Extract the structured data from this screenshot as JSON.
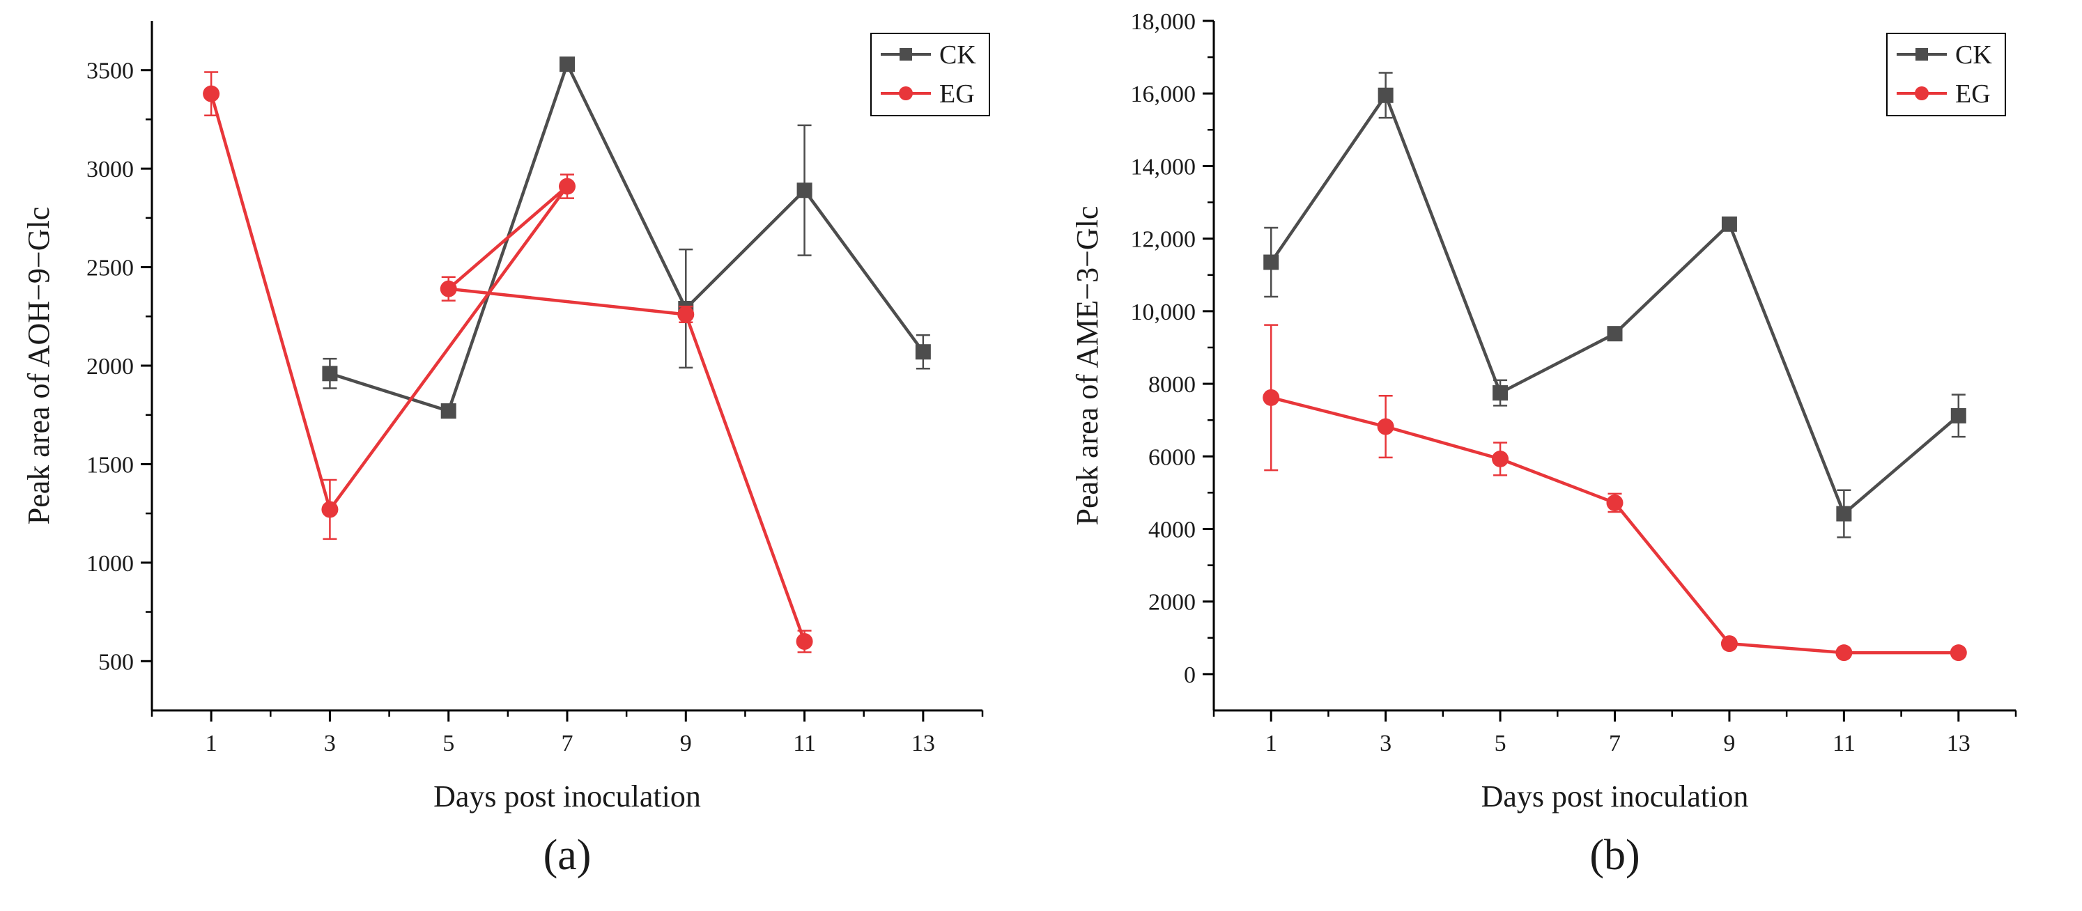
{
  "chart_data": [
    {
      "type": "line",
      "panel_label": "(a)",
      "xlabel": "Days post inoculation",
      "ylabel": "Peak area of AOH−9−Glc",
      "x_ticks": [
        1,
        3,
        5,
        7,
        9,
        11,
        13
      ],
      "x_tick_labels": [
        "1",
        "3",
        "5",
        "7",
        "9",
        "11",
        "13"
      ],
      "xlim": [
        0,
        14
      ],
      "y_ticks": [
        500,
        1000,
        1500,
        2000,
        2500,
        3000,
        3500
      ],
      "y_tick_labels": [
        "500",
        "1000",
        "1500",
        "2000",
        "2500",
        "3000",
        "3500"
      ],
      "ylim": [
        250,
        3750
      ],
      "legend_position": "top-right",
      "series": [
        {
          "name": "CK",
          "color": "#4d4d4d",
          "marker": "square",
          "x": [
            3,
            5,
            7,
            9,
            11,
            13
          ],
          "y": [
            1960,
            1770,
            3530,
            2290,
            2890,
            2070
          ],
          "err": [
            75,
            30,
            20,
            300,
            330,
            85
          ]
        },
        {
          "name": "EG",
          "color": "#e8363a",
          "marker": "circle",
          "x": [
            1,
            3,
            7,
            5,
            9,
            11
          ],
          "y": [
            3380,
            1270,
            2910,
            2390,
            2260,
            600
          ],
          "err": [
            110,
            150,
            60,
            60,
            40,
            55
          ]
        }
      ]
    },
    {
      "type": "line",
      "panel_label": "(b)",
      "xlabel": "Days post inoculation",
      "ylabel": "Peak area of AME−3−Glc",
      "x_ticks": [
        1,
        3,
        5,
        7,
        9,
        11,
        13
      ],
      "x_tick_labels": [
        "1",
        "3",
        "5",
        "7",
        "9",
        "11",
        "13"
      ],
      "xlim": [
        0,
        14
      ],
      "y_ticks": [
        0,
        2000,
        4000,
        6000,
        8000,
        10000,
        12000,
        14000,
        16000,
        18000
      ],
      "y_tick_labels": [
        "0",
        "2000",
        "4000",
        "6000",
        "8000",
        "10,000",
        "12,000",
        "14,000",
        "16,000",
        "18,000"
      ],
      "ylim": [
        -1000,
        18000
      ],
      "legend_position": "top-right",
      "series": [
        {
          "name": "CK",
          "color": "#4d4d4d",
          "marker": "square",
          "x": [
            1,
            3,
            5,
            7,
            9,
            11,
            13
          ],
          "y": [
            11350,
            15950,
            7750,
            9380,
            12400,
            4420,
            7120
          ],
          "err": [
            950,
            620,
            350,
            120,
            100,
            650,
            580
          ]
        },
        {
          "name": "EG",
          "color": "#e8363a",
          "marker": "circle",
          "x": [
            1,
            3,
            5,
            7,
            9,
            11,
            13
          ],
          "y": [
            7620,
            6820,
            5930,
            4720,
            840,
            590,
            590
          ],
          "err": [
            2000,
            850,
            450,
            250,
            70,
            50,
            50
          ]
        }
      ]
    }
  ]
}
